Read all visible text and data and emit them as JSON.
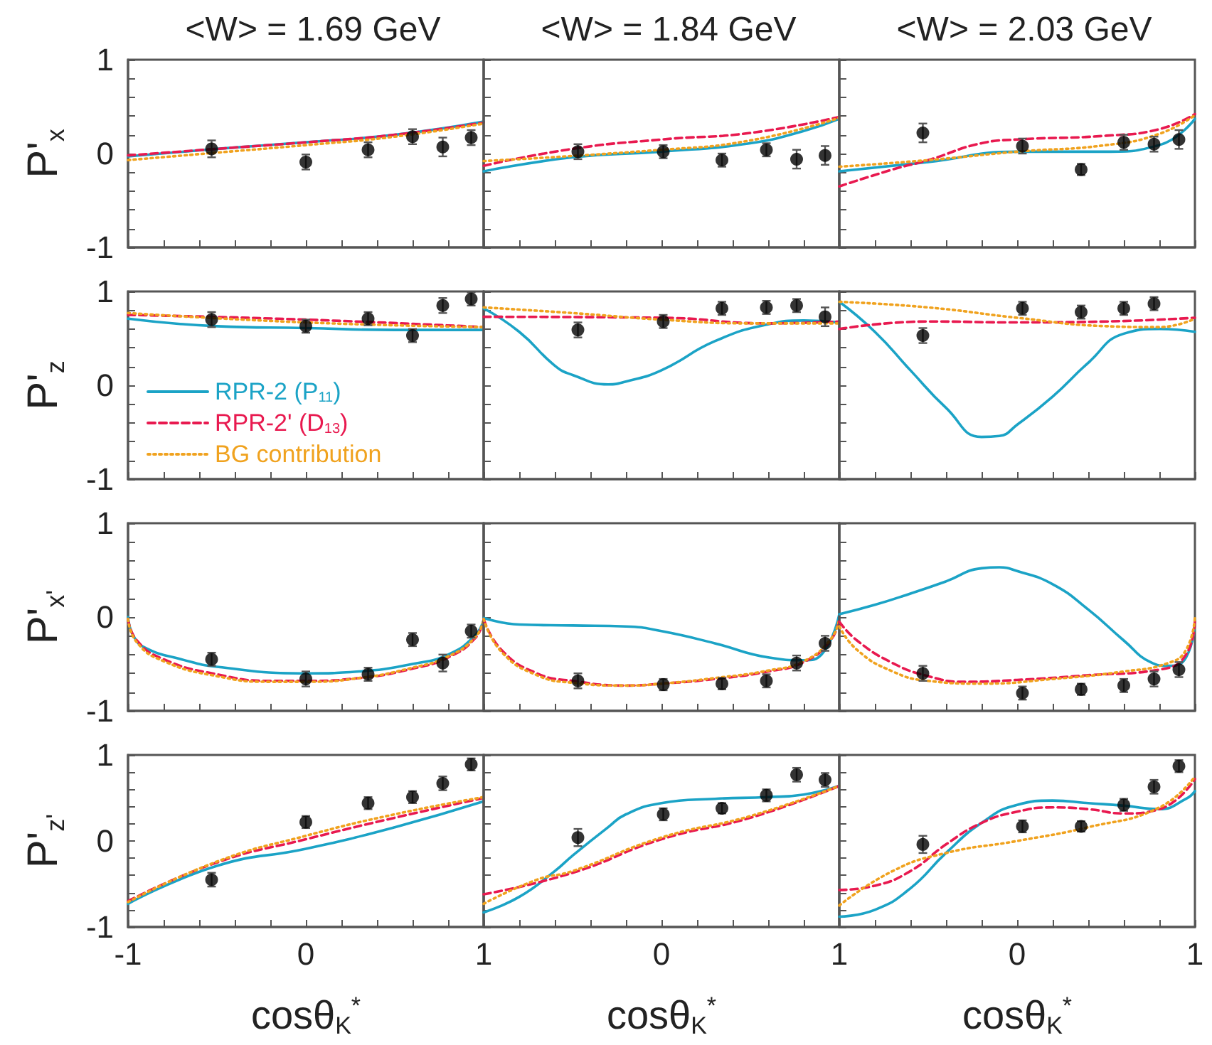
{
  "chart_data": [
    {
      "type": "line",
      "title": "<W> = 1.69 GeV",
      "ylabel": "P'$_{x}$",
      "xlim": [
        -1,
        1
      ],
      "ylim": [
        -1,
        1
      ],
      "tick_labels": "y",
      "xticks": [
        -1,
        {
          "value": -0.8,
          "label": null
        },
        {
          "value": -0.6,
          "label": null
        },
        {
          "value": -0.4,
          "label": null
        },
        {
          "value": -0.2,
          "label": null
        },
        0,
        {
          "value": 0.2,
          "label": null
        },
        {
          "value": 0.4,
          "label": null
        },
        {
          "value": 0.6,
          "label": null
        },
        {
          "value": 0.8,
          "label": null
        },
        1
      ],
      "yticks": [
        -1,
        {
          "value": -0.8,
          "label": null
        },
        {
          "value": -0.6,
          "label": null
        },
        {
          "value": -0.4,
          "label": null
        },
        {
          "value": -0.2,
          "label": null
        },
        0,
        {
          "value": 0.2,
          "label": null
        },
        {
          "value": 0.4,
          "label": null
        },
        {
          "value": 0.6,
          "label": null
        },
        {
          "value": 0.8,
          "label": null
        },
        1
      ],
      "series": [
        {
          "color": "#1ba3c6",
          "line_style": "solid",
          "marker": "none",
          "x": [
            -1,
            -0.5,
            0,
            0.5,
            1
          ],
          "values": [
            -0.03,
            0.05,
            0.12,
            0.2,
            0.34
          ]
        },
        {
          "color": "#e8194f",
          "line_style": "dashed",
          "marker": "none",
          "x": [
            -1,
            -0.5,
            0,
            0.5,
            1
          ],
          "values": [
            -0.02,
            0.05,
            0.12,
            0.2,
            0.33
          ]
        },
        {
          "color": "#f0a21e",
          "line_style": "dotted",
          "marker": "none",
          "x": [
            -1,
            -0.5,
            0,
            0.5,
            1
          ],
          "values": [
            -0.07,
            0.01,
            0.09,
            0.18,
            0.32
          ]
        },
        {
          "type": "scatter",
          "color": "#000000",
          "marker": "circle",
          "x": [
            -0.53,
            0,
            0.35,
            0.6,
            0.77,
            0.93
          ],
          "values": [
            0.05,
            -0.09,
            0.04,
            0.18,
            0.07,
            0.17
          ],
          "errors": [
            0.09,
            0.08,
            0.08,
            0.08,
            0.1,
            0.08
          ]
        }
      ]
    },
    {
      "type": "line",
      "title": "<W> = 1.84 GeV",
      "xlim": [
        -1,
        1
      ],
      "ylim": [
        -1,
        1
      ],
      "tick_labels": false,
      "xticks": [
        {
          "value": -1,
          "label": null
        },
        {
          "value": -0.8,
          "label": null
        },
        {
          "value": -0.6,
          "label": null
        },
        {
          "value": -0.4,
          "label": null
        },
        {
          "value": -0.2,
          "label": null
        },
        0,
        {
          "value": 0.2,
          "label": null
        },
        {
          "value": 0.4,
          "label": null
        },
        {
          "value": 0.6,
          "label": null
        },
        {
          "value": 0.8,
          "label": null
        },
        1
      ],
      "yticks": [
        -1,
        {
          "value": -0.8,
          "label": null
        },
        {
          "value": -0.6,
          "label": null
        },
        {
          "value": -0.4,
          "label": null
        },
        {
          "value": -0.2,
          "label": null
        },
        0,
        {
          "value": 0.2,
          "label": null
        },
        {
          "value": 0.4,
          "label": null
        },
        {
          "value": 0.6,
          "label": null
        },
        {
          "value": 0.8,
          "label": null
        },
        1
      ],
      "series": [
        {
          "color": "#1ba3c6",
          "line_style": "solid",
          "marker": "none",
          "x": [
            -1,
            -0.5,
            0,
            0.5,
            0.8,
            1
          ],
          "values": [
            -0.19,
            -0.04,
            0.02,
            0.11,
            0.24,
            0.37
          ]
        },
        {
          "color": "#e8194f",
          "line_style": "dashed",
          "marker": "none",
          "x": [
            -1,
            -0.5,
            0,
            0.5,
            1
          ],
          "values": [
            -0.13,
            0.05,
            0.15,
            0.22,
            0.39
          ]
        },
        {
          "color": "#f0a21e",
          "line_style": "dotted",
          "marker": "none",
          "x": [
            -1,
            0,
            0.5,
            1
          ],
          "values": [
            -0.08,
            0.04,
            0.14,
            0.38
          ]
        },
        {
          "type": "scatter",
          "color": "#000000",
          "marker": "circle",
          "x": [
            -0.47,
            0.01,
            0.34,
            0.59,
            0.76,
            0.92
          ],
          "values": [
            0.02,
            0.02,
            -0.07,
            0.04,
            -0.06,
            -0.02
          ],
          "errors": [
            0.08,
            0.07,
            0.07,
            0.07,
            0.1,
            0.1
          ]
        }
      ]
    },
    {
      "type": "line",
      "title": "<W> = 2.03 GeV",
      "xlim": [
        -1,
        1
      ],
      "ylim": [
        -1,
        1
      ],
      "tick_labels": false,
      "xticks": [
        {
          "value": -1,
          "label": null
        },
        {
          "value": -0.8,
          "label": null
        },
        {
          "value": -0.6,
          "label": null
        },
        {
          "value": -0.4,
          "label": null
        },
        {
          "value": -0.2,
          "label": null
        },
        0,
        {
          "value": 0.2,
          "label": null
        },
        {
          "value": 0.4,
          "label": null
        },
        {
          "value": 0.6,
          "label": null
        },
        {
          "value": 0.8,
          "label": null
        },
        1
      ],
      "yticks": [
        -1,
        {
          "value": -0.8,
          "label": null
        },
        {
          "value": -0.6,
          "label": null
        },
        {
          "value": -0.4,
          "label": null
        },
        {
          "value": -0.2,
          "label": null
        },
        0,
        {
          "value": 0.2,
          "label": null
        },
        {
          "value": 0.4,
          "label": null
        },
        {
          "value": 0.6,
          "label": null
        },
        {
          "value": 0.8,
          "label": null
        },
        1
      ],
      "series": [
        {
          "color": "#1ba3c6",
          "line_style": "solid",
          "marker": "none",
          "x": [
            -1,
            -0.5,
            0,
            0.5,
            0.8,
            1
          ],
          "values": [
            -0.19,
            -0.09,
            0.02,
            0.02,
            0.09,
            0.37
          ]
        },
        {
          "color": "#e8194f",
          "line_style": "dashed",
          "marker": "none",
          "x": [
            -1,
            -0.7,
            -0.5,
            -0.2,
            0,
            0.5,
            0.8,
            1
          ],
          "values": [
            -0.35,
            -0.17,
            -0.07,
            0.11,
            0.15,
            0.19,
            0.26,
            0.42
          ]
        },
        {
          "color": "#f0a21e",
          "line_style": "dotted",
          "marker": "none",
          "x": [
            -1,
            -0.5,
            0,
            0.5,
            0.8,
            1
          ],
          "values": [
            -0.14,
            -0.07,
            0.02,
            0.09,
            0.21,
            0.41
          ]
        },
        {
          "type": "scatter",
          "color": "#000000",
          "marker": "circle",
          "x": [
            -0.53,
            0.03,
            0.36,
            0.6,
            0.77,
            0.91
          ],
          "values": [
            0.22,
            0.08,
            -0.17,
            0.12,
            0.1,
            0.15
          ],
          "errors": [
            0.1,
            0.08,
            0.06,
            0.08,
            0.08,
            0.1
          ]
        }
      ]
    },
    {
      "type": "line",
      "ylabel": "P'$_{z}$",
      "xlim": [
        -1,
        1
      ],
      "ylim": [
        -1,
        1
      ],
      "tick_labels": "y",
      "legend": "bottom left",
      "xticks": [
        -1,
        {
          "value": -0.8,
          "label": null
        },
        {
          "value": -0.6,
          "label": null
        },
        {
          "value": -0.4,
          "label": null
        },
        {
          "value": -0.2,
          "label": null
        },
        0,
        {
          "value": 0.2,
          "label": null
        },
        {
          "value": 0.4,
          "label": null
        },
        {
          "value": 0.6,
          "label": null
        },
        {
          "value": 0.8,
          "label": null
        },
        1
      ],
      "yticks": [
        -1,
        {
          "value": -0.8,
          "label": null
        },
        {
          "value": -0.6,
          "label": null
        },
        {
          "value": -0.4,
          "label": null
        },
        {
          "value": -0.2,
          "label": null
        },
        0,
        {
          "value": 0.2,
          "label": null
        },
        {
          "value": 0.4,
          "label": null
        },
        {
          "value": 0.6,
          "label": null
        },
        {
          "value": 0.8,
          "label": null
        },
        1
      ],
      "series": [
        {
          "name": "RPR-2 (P$_{11}$)",
          "color": "#1ba3c6",
          "line_style": "solid",
          "marker": "none",
          "x": [
            -1,
            -0.5,
            0,
            0.5,
            1
          ],
          "values": [
            0.71,
            0.63,
            0.61,
            0.59,
            0.59
          ]
        },
        {
          "name": "RPR-2' (D$_{13}$)",
          "color": "#e8194f",
          "line_style": "dashed",
          "marker": "none",
          "x": [
            -1,
            0,
            1
          ],
          "values": [
            0.75,
            0.7,
            0.62
          ]
        },
        {
          "name": "BG contribution",
          "color": "#f0a21e",
          "line_style": "dotted",
          "marker": "none",
          "x": [
            -1,
            0,
            1
          ],
          "values": [
            0.77,
            0.67,
            0.62
          ]
        },
        {
          "type": "scatter",
          "color": "#000000",
          "marker": "circle",
          "x": [
            -0.53,
            0,
            0.35,
            0.6,
            0.77,
            0.93
          ],
          "values": [
            0.7,
            0.63,
            0.71,
            0.53,
            0.85,
            0.92
          ],
          "errors": [
            0.08,
            0.07,
            0.07,
            0.07,
            0.08,
            0.07
          ]
        }
      ]
    },
    {
      "type": "line",
      "xlim": [
        -1,
        1
      ],
      "ylim": [
        -1,
        1
      ],
      "tick_labels": false,
      "xticks": [
        {
          "value": -1,
          "label": null
        },
        {
          "value": -0.8,
          "label": null
        },
        {
          "value": -0.6,
          "label": null
        },
        {
          "value": -0.4,
          "label": null
        },
        {
          "value": -0.2,
          "label": null
        },
        0,
        {
          "value": 0.2,
          "label": null
        },
        {
          "value": 0.4,
          "label": null
        },
        {
          "value": 0.6,
          "label": null
        },
        {
          "value": 0.8,
          "label": null
        },
        1
      ],
      "yticks": [
        -1,
        {
          "value": -0.8,
          "label": null
        },
        {
          "value": -0.6,
          "label": null
        },
        {
          "value": -0.4,
          "label": null
        },
        {
          "value": -0.2,
          "label": null
        },
        0,
        {
          "value": 0.2,
          "label": null
        },
        {
          "value": 0.4,
          "label": null
        },
        {
          "value": 0.6,
          "label": null
        },
        {
          "value": 0.8,
          "label": null
        },
        1
      ],
      "series": [
        {
          "color": "#1ba3c6",
          "line_style": "solid",
          "marker": "none",
          "x": [
            -1,
            -0.8,
            -0.6,
            -0.5,
            -0.3,
            -0.2,
            0,
            0.3,
            0.6,
            0.8,
            1
          ],
          "values": [
            0.82,
            0.57,
            0.21,
            0.11,
            0.01,
            0.04,
            0.16,
            0.47,
            0.65,
            0.69,
            0.67
          ]
        },
        {
          "color": "#e8194f",
          "line_style": "dashed",
          "marker": "none",
          "x": [
            -1,
            0,
            0.6,
            1
          ],
          "values": [
            0.73,
            0.72,
            0.66,
            0.68
          ]
        },
        {
          "color": "#f0a21e",
          "line_style": "dotted",
          "marker": "none",
          "x": [
            -1,
            -0.5,
            0,
            0.5,
            1
          ],
          "values": [
            0.83,
            0.77,
            0.7,
            0.66,
            0.66
          ]
        },
        {
          "type": "scatter",
          "color": "#000000",
          "marker": "circle",
          "x": [
            -0.47,
            0.01,
            0.34,
            0.59,
            0.76,
            0.92
          ],
          "values": [
            0.59,
            0.68,
            0.82,
            0.83,
            0.85,
            0.73
          ],
          "errors": [
            0.08,
            0.07,
            0.07,
            0.07,
            0.07,
            0.1
          ]
        }
      ]
    },
    {
      "type": "line",
      "xlim": [
        -1,
        1
      ],
      "ylim": [
        -1,
        1
      ],
      "tick_labels": false,
      "xticks": [
        {
          "value": -1,
          "label": null
        },
        {
          "value": -0.8,
          "label": null
        },
        {
          "value": -0.6,
          "label": null
        },
        {
          "value": -0.4,
          "label": null
        },
        {
          "value": -0.2,
          "label": null
        },
        0,
        {
          "value": 0.2,
          "label": null
        },
        {
          "value": 0.4,
          "label": null
        },
        {
          "value": 0.6,
          "label": null
        },
        {
          "value": 0.8,
          "label": null
        },
        1
      ],
      "yticks": [
        -1,
        {
          "value": -0.8,
          "label": null
        },
        {
          "value": -0.6,
          "label": null
        },
        {
          "value": -0.4,
          "label": null
        },
        {
          "value": -0.2,
          "label": null
        },
        0,
        {
          "value": 0.2,
          "label": null
        },
        {
          "value": 0.4,
          "label": null
        },
        {
          "value": 0.6,
          "label": null
        },
        {
          "value": 0.8,
          "label": null
        },
        1
      ],
      "series": [
        {
          "color": "#1ba3c6",
          "line_style": "solid",
          "marker": "none",
          "x": [
            -1,
            -0.8,
            -0.6,
            -0.4,
            -0.2,
            -0.1,
            0,
            0.2,
            0.4,
            0.6,
            0.8,
            1
          ],
          "values": [
            0.89,
            0.57,
            0.16,
            -0.24,
            -0.55,
            -0.54,
            -0.42,
            -0.12,
            0.24,
            0.55,
            0.6,
            0.57
          ]
        },
        {
          "color": "#e8194f",
          "line_style": "dashed",
          "marker": "none",
          "x": [
            -1,
            -0.5,
            0,
            0.5,
            1
          ],
          "values": [
            0.6,
            0.68,
            0.67,
            0.68,
            0.72
          ]
        },
        {
          "color": "#f0a21e",
          "line_style": "dotted",
          "marker": "none",
          "x": [
            -1,
            -0.5,
            0,
            0.5,
            0.8,
            1
          ],
          "values": [
            0.89,
            0.83,
            0.72,
            0.63,
            0.62,
            0.71
          ]
        },
        {
          "type": "scatter",
          "color": "#000000",
          "marker": "circle",
          "x": [
            -0.53,
            0.03,
            0.36,
            0.6,
            0.77
          ],
          "values": [
            0.53,
            0.82,
            0.78,
            0.82,
            0.87
          ],
          "errors": [
            0.08,
            0.07,
            0.07,
            0.07,
            0.07
          ]
        }
      ]
    },
    {
      "type": "line",
      "ylabel": "P'$_{x'}$",
      "xlim": [
        -1,
        1
      ],
      "ylim": [
        -1,
        1
      ],
      "tick_labels": "y",
      "xticks": [
        -1,
        {
          "value": -0.8,
          "label": null
        },
        {
          "value": -0.6,
          "label": null
        },
        {
          "value": -0.4,
          "label": null
        },
        {
          "value": -0.2,
          "label": null
        },
        0,
        {
          "value": 0.2,
          "label": null
        },
        {
          "value": 0.4,
          "label": null
        },
        {
          "value": 0.6,
          "label": null
        },
        {
          "value": 0.8,
          "label": null
        },
        1
      ],
      "yticks": [
        -1,
        {
          "value": -0.8,
          "label": null
        },
        {
          "value": -0.6,
          "label": null
        },
        {
          "value": -0.4,
          "label": null
        },
        {
          "value": -0.2,
          "label": null
        },
        0,
        {
          "value": 0.2,
          "label": null
        },
        {
          "value": 0.4,
          "label": null
        },
        {
          "value": 0.6,
          "label": null
        },
        {
          "value": 0.8,
          "label": null
        },
        1
      ],
      "series": [
        {
          "color": "#1ba3c6",
          "line_style": "solid",
          "marker": "none",
          "x": [
            -1,
            -0.97,
            -0.9,
            -0.7,
            -0.5,
            0,
            0.3,
            0.6,
            0.8,
            0.95,
            1
          ],
          "values": [
            0,
            -0.2,
            -0.33,
            -0.45,
            -0.53,
            -0.6,
            -0.58,
            -0.5,
            -0.4,
            -0.2,
            -0.03
          ]
        },
        {
          "color": "#e8194f",
          "line_style": "dashed",
          "marker": "none",
          "x": [
            -1,
            -0.95,
            -0.8,
            -0.5,
            -0.2,
            0,
            0.3,
            0.6,
            0.8,
            0.95,
            1
          ],
          "values": [
            -0.02,
            -0.25,
            -0.45,
            -0.61,
            -0.68,
            -0.68,
            -0.65,
            -0.55,
            -0.43,
            -0.23,
            -0.03
          ]
        },
        {
          "color": "#f0a21e",
          "line_style": "dotted",
          "marker": "none",
          "x": [
            -1,
            -0.95,
            -0.8,
            -0.5,
            -0.2,
            0,
            0.3,
            0.6,
            0.8,
            0.95,
            1
          ],
          "values": [
            -0.02,
            -0.27,
            -0.47,
            -0.63,
            -0.69,
            -0.69,
            -0.65,
            -0.54,
            -0.42,
            -0.22,
            -0.03
          ]
        },
        {
          "type": "scatter",
          "color": "#000000",
          "marker": "circle",
          "x": [
            -0.53,
            0,
            0.35,
            0.6,
            0.77,
            0.93
          ],
          "values": [
            -0.45,
            -0.66,
            -0.61,
            -0.24,
            -0.49,
            -0.15
          ],
          "errors": [
            0.07,
            0.08,
            0.07,
            0.07,
            0.09,
            0.07
          ]
        }
      ]
    },
    {
      "type": "line",
      "xlim": [
        -1,
        1
      ],
      "ylim": [
        -1,
        1
      ],
      "tick_labels": false,
      "xticks": [
        {
          "value": -1,
          "label": null
        },
        {
          "value": -0.8,
          "label": null
        },
        {
          "value": -0.6,
          "label": null
        },
        {
          "value": -0.4,
          "label": null
        },
        {
          "value": -0.2,
          "label": null
        },
        0,
        {
          "value": 0.2,
          "label": null
        },
        {
          "value": 0.4,
          "label": null
        },
        {
          "value": 0.6,
          "label": null
        },
        {
          "value": 0.8,
          "label": null
        },
        1
      ],
      "yticks": [
        -1,
        {
          "value": -0.8,
          "label": null
        },
        {
          "value": -0.6,
          "label": null
        },
        {
          "value": -0.4,
          "label": null
        },
        {
          "value": -0.2,
          "label": null
        },
        0,
        {
          "value": 0.2,
          "label": null
        },
        {
          "value": 0.4,
          "label": null
        },
        {
          "value": 0.6,
          "label": null
        },
        {
          "value": 0.8,
          "label": null
        },
        1
      ],
      "series": [
        {
          "color": "#1ba3c6",
          "line_style": "solid",
          "marker": "none",
          "x": [
            -1,
            -0.8,
            -0.5,
            -0.2,
            0,
            0.3,
            0.6,
            0.8,
            0.9,
            1
          ],
          "values": [
            -0.01,
            -0.08,
            -0.09,
            -0.1,
            -0.15,
            -0.28,
            -0.43,
            -0.46,
            -0.4,
            0.03
          ]
        },
        {
          "color": "#e8194f",
          "line_style": "dashed",
          "marker": "none",
          "x": [
            -1,
            -0.9,
            -0.7,
            -0.5,
            -0.2,
            0,
            0.3,
            0.6,
            0.8,
            0.95,
            1
          ],
          "values": [
            -0.02,
            -0.35,
            -0.6,
            -0.68,
            -0.73,
            -0.71,
            -0.66,
            -0.58,
            -0.48,
            -0.25,
            -0.02
          ]
        },
        {
          "color": "#f0a21e",
          "line_style": "dotted",
          "marker": "none",
          "x": [
            -1,
            -0.9,
            -0.7,
            -0.5,
            -0.2,
            0,
            0.3,
            0.6,
            0.8,
            0.95,
            1
          ],
          "values": [
            -0.02,
            -0.37,
            -0.62,
            -0.7,
            -0.73,
            -0.71,
            -0.65,
            -0.57,
            -0.47,
            -0.24,
            -0.02
          ]
        },
        {
          "type": "scatter",
          "color": "#000000",
          "marker": "circle",
          "x": [
            -0.47,
            0.01,
            0.34,
            0.59,
            0.76,
            0.92
          ],
          "values": [
            -0.68,
            -0.72,
            -0.71,
            -0.68,
            -0.49,
            -0.28
          ],
          "errors": [
            0.08,
            0.06,
            0.06,
            0.07,
            0.08,
            0.08
          ]
        }
      ]
    },
    {
      "type": "line",
      "xlim": [
        -1,
        1
      ],
      "ylim": [
        -1,
        1
      ],
      "tick_labels": false,
      "xticks": [
        {
          "value": -1,
          "label": null
        },
        {
          "value": -0.8,
          "label": null
        },
        {
          "value": -0.6,
          "label": null
        },
        {
          "value": -0.4,
          "label": null
        },
        {
          "value": -0.2,
          "label": null
        },
        0,
        {
          "value": 0.2,
          "label": null
        },
        {
          "value": 0.4,
          "label": null
        },
        {
          "value": 0.6,
          "label": null
        },
        {
          "value": 0.8,
          "label": null
        },
        1
      ],
      "yticks": [
        -1,
        {
          "value": -0.8,
          "label": null
        },
        {
          "value": -0.6,
          "label": null
        },
        {
          "value": -0.4,
          "label": null
        },
        {
          "value": -0.2,
          "label": null
        },
        0,
        {
          "value": 0.2,
          "label": null
        },
        {
          "value": 0.4,
          "label": null
        },
        {
          "value": 0.6,
          "label": null
        },
        {
          "value": 0.8,
          "label": null
        },
        1
      ],
      "series": [
        {
          "color": "#1ba3c6",
          "line_style": "solid",
          "marker": "none",
          "x": [
            -1,
            -0.8,
            -0.6,
            -0.4,
            -0.2,
            -0.1,
            0,
            0.2,
            0.4,
            0.6,
            0.75,
            0.85,
            0.95,
            1
          ],
          "values": [
            0.03,
            0.13,
            0.25,
            0.38,
            0.52,
            0.53,
            0.49,
            0.35,
            0.08,
            -0.25,
            -0.48,
            -0.52,
            -0.43,
            -0.03
          ]
        },
        {
          "color": "#e8194f",
          "line_style": "dashed",
          "marker": "none",
          "x": [
            -1,
            -0.9,
            -0.7,
            -0.5,
            -0.3,
            0,
            0.4,
            0.8,
            0.95,
            1
          ],
          "values": [
            -0.05,
            -0.25,
            -0.49,
            -0.63,
            -0.69,
            -0.67,
            -0.62,
            -0.56,
            -0.4,
            -0.03
          ]
        },
        {
          "color": "#f0a21e",
          "line_style": "dotted",
          "marker": "none",
          "x": [
            -1,
            -0.9,
            -0.7,
            -0.5,
            -0.2,
            0.2,
            0.6,
            0.85,
            0.95,
            1
          ],
          "values": [
            -0.1,
            -0.35,
            -0.58,
            -0.68,
            -0.71,
            -0.66,
            -0.58,
            -0.49,
            -0.35,
            0
          ]
        },
        {
          "type": "scatter",
          "color": "#000000",
          "marker": "circle",
          "x": [
            -0.53,
            0.03,
            0.36,
            0.6,
            0.77,
            0.91
          ],
          "values": [
            -0.6,
            -0.81,
            -0.77,
            -0.73,
            -0.66,
            -0.56
          ],
          "errors": [
            0.08,
            0.07,
            0.06,
            0.07,
            0.08,
            0.08
          ]
        }
      ]
    },
    {
      "type": "line",
      "ylabel": "P'$_{z'}$",
      "xlabel": "cosθ$_{K}$$^{*}$",
      "xlim": [
        -1,
        1
      ],
      "ylim": [
        -1,
        1
      ],
      "xticks": [
        -1,
        {
          "value": -0.8,
          "label": null
        },
        {
          "value": -0.6,
          "label": null
        },
        {
          "value": -0.4,
          "label": null
        },
        {
          "value": -0.2,
          "label": null
        },
        0,
        {
          "value": 0.2,
          "label": null
        },
        {
          "value": 0.4,
          "label": null
        },
        {
          "value": 0.6,
          "label": null
        },
        {
          "value": 0.8,
          "label": null
        },
        1
      ],
      "yticks": [
        -1,
        {
          "value": -0.8,
          "label": null
        },
        {
          "value": -0.6,
          "label": null
        },
        {
          "value": -0.4,
          "label": null
        },
        {
          "value": -0.2,
          "label": null
        },
        0,
        {
          "value": 0.2,
          "label": null
        },
        {
          "value": 0.4,
          "label": null
        },
        {
          "value": 0.6,
          "label": null
        },
        {
          "value": 0.8,
          "label": null
        },
        1
      ],
      "series": [
        {
          "color": "#1ba3c6",
          "line_style": "solid",
          "marker": "none",
          "x": [
            -1,
            -0.5,
            0,
            0.5,
            1
          ],
          "values": [
            -0.73,
            -0.29,
            -0.09,
            0.16,
            0.46
          ]
        },
        {
          "color": "#e8194f",
          "line_style": "dashed",
          "marker": "none",
          "x": [
            -1,
            -0.5,
            0,
            0.5,
            1
          ],
          "values": [
            -0.7,
            -0.25,
            0.02,
            0.27,
            0.5
          ]
        },
        {
          "color": "#f0a21e",
          "line_style": "dotted",
          "marker": "none",
          "x": [
            -1,
            -0.5,
            0,
            0.5,
            1
          ],
          "values": [
            -0.71,
            -0.24,
            0.06,
            0.31,
            0.51
          ]
        },
        {
          "type": "scatter",
          "color": "#000000",
          "marker": "circle",
          "x": [
            -0.53,
            0,
            0.35,
            0.6,
            0.77,
            0.93
          ],
          "values": [
            -0.45,
            0.22,
            0.44,
            0.51,
            0.67,
            0.89
          ],
          "errors": [
            0.08,
            0.07,
            0.07,
            0.07,
            0.08,
            0.07
          ]
        }
      ]
    },
    {
      "type": "line",
      "xlabel": "cosθ$_{K}$$^{*}$",
      "xlim": [
        -1,
        1
      ],
      "ylim": [
        -1,
        1
      ],
      "tick_labels": "x",
      "xticks": [
        {
          "value": -1,
          "label": null
        },
        {
          "value": -0.8,
          "label": null
        },
        {
          "value": -0.6,
          "label": null
        },
        {
          "value": -0.4,
          "label": null
        },
        {
          "value": -0.2,
          "label": null
        },
        0,
        {
          "value": 0.2,
          "label": null
        },
        {
          "value": 0.4,
          "label": null
        },
        {
          "value": 0.6,
          "label": null
        },
        {
          "value": 0.8,
          "label": null
        },
        1
      ],
      "yticks": [
        -1,
        {
          "value": -0.8,
          "label": null
        },
        {
          "value": -0.6,
          "label": null
        },
        {
          "value": -0.4,
          "label": null
        },
        {
          "value": -0.2,
          "label": null
        },
        0,
        {
          "value": 0.2,
          "label": null
        },
        {
          "value": 0.4,
          "label": null
        },
        {
          "value": 0.6,
          "label": null
        },
        {
          "value": 0.8,
          "label": null
        },
        1
      ],
      "series": [
        {
          "color": "#1ba3c6",
          "line_style": "solid",
          "marker": "none",
          "x": [
            -1,
            -0.8,
            -0.6,
            -0.5,
            -0.3,
            -0.2,
            0,
            0.3,
            0.6,
            0.8,
            1
          ],
          "values": [
            -0.83,
            -0.65,
            -0.35,
            -0.17,
            0.16,
            0.31,
            0.44,
            0.49,
            0.51,
            0.54,
            0.64
          ]
        },
        {
          "color": "#e8194f",
          "line_style": "dashed",
          "marker": "none",
          "x": [
            -1,
            -0.5,
            0,
            0.5,
            1
          ],
          "values": [
            -0.62,
            -0.37,
            0.02,
            0.27,
            0.64
          ]
        },
        {
          "color": "#f0a21e",
          "line_style": "dotted",
          "marker": "none",
          "x": [
            -1,
            -0.7,
            -0.5,
            0,
            0.5,
            1
          ],
          "values": [
            -0.73,
            -0.45,
            -0.35,
            0.04,
            0.29,
            0.64
          ]
        },
        {
          "type": "scatter",
          "color": "#000000",
          "marker": "circle",
          "x": [
            -0.47,
            0.01,
            0.34,
            0.59,
            0.76,
            0.92
          ],
          "values": [
            0.04,
            0.31,
            0.38,
            0.53,
            0.77,
            0.71
          ],
          "errors": [
            0.1,
            0.07,
            0.06,
            0.07,
            0.08,
            0.08
          ]
        }
      ]
    },
    {
      "type": "line",
      "xlabel": "cosθ$_{K}$$^{*}$",
      "xlim": [
        -1,
        1
      ],
      "ylim": [
        -1,
        1
      ],
      "tick_labels": "x",
      "xticks": [
        {
          "value": -1,
          "label": null
        },
        {
          "value": -0.8,
          "label": null
        },
        {
          "value": -0.6,
          "label": null
        },
        {
          "value": -0.4,
          "label": null
        },
        {
          "value": -0.2,
          "label": null
        },
        0,
        {
          "value": 0.2,
          "label": null
        },
        {
          "value": 0.4,
          "label": null
        },
        {
          "value": 0.6,
          "label": null
        },
        {
          "value": 0.8,
          "label": null
        },
        1
      ],
      "yticks": [
        -1,
        {
          "value": -0.8,
          "label": null
        },
        {
          "value": -0.6,
          "label": null
        },
        {
          "value": -0.4,
          "label": null
        },
        {
          "value": -0.2,
          "label": null
        },
        0,
        {
          "value": 0.2,
          "label": null
        },
        {
          "value": 0.4,
          "label": null
        },
        {
          "value": 0.6,
          "label": null
        },
        {
          "value": 0.8,
          "label": null
        },
        1
      ],
      "series": [
        {
          "color": "#1ba3c6",
          "line_style": "solid",
          "marker": "none",
          "x": [
            -1,
            -0.8,
            -0.6,
            -0.4,
            -0.2,
            0,
            0.2,
            0.4,
            0.6,
            0.8,
            0.95,
            1
          ],
          "values": [
            -0.88,
            -0.8,
            -0.55,
            -0.14,
            0.21,
            0.42,
            0.47,
            0.44,
            0.41,
            0.37,
            0.49,
            0.58
          ]
        },
        {
          "color": "#e8194f",
          "line_style": "dashed",
          "marker": "none",
          "x": [
            -1,
            -0.8,
            -0.6,
            -0.4,
            -0.2,
            0,
            0.2,
            0.4,
            0.6,
            0.8,
            1
          ],
          "values": [
            -0.57,
            -0.52,
            -0.35,
            -0.04,
            0.21,
            0.34,
            0.39,
            0.37,
            0.32,
            0.37,
            0.72
          ]
        },
        {
          "color": "#f0a21e",
          "line_style": "dotted",
          "marker": "none",
          "x": [
            -1,
            -0.7,
            -0.4,
            0,
            0.4,
            0.8,
            1
          ],
          "values": [
            -0.75,
            -0.35,
            -0.14,
            0,
            0.16,
            0.39,
            0.75
          ]
        },
        {
          "type": "scatter",
          "color": "#000000",
          "marker": "circle",
          "x": [
            -0.53,
            0.03,
            0.36,
            0.6,
            0.77,
            0.91
          ],
          "values": [
            -0.04,
            0.17,
            0.17,
            0.42,
            0.63,
            0.87
          ],
          "errors": [
            0.1,
            0.07,
            0.06,
            0.07,
            0.08,
            0.07
          ]
        }
      ]
    }
  ]
}
